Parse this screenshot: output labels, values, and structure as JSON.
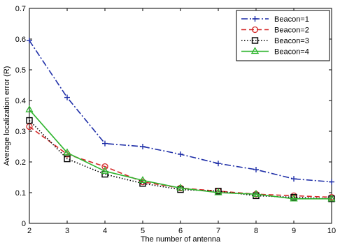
{
  "chart_data": {
    "type": "line",
    "xlabel": "The number of antenna",
    "ylabel": "Average localization error (R)",
    "x": [
      2,
      3,
      4,
      5,
      6,
      7,
      8,
      9,
      10
    ],
    "xlim": [
      2,
      10
    ],
    "ylim": [
      0,
      0.7
    ],
    "xticks": [
      "2",
      "3",
      "4",
      "5",
      "6",
      "7",
      "8",
      "9",
      "10"
    ],
    "yticks": [
      "0",
      "0.1",
      "0.2",
      "0.3",
      "0.4",
      "0.5",
      "0.6",
      "0.7"
    ],
    "grid": false,
    "legend_position": "top-right",
    "series": [
      {
        "name": "Beacon=1",
        "color": "#1f2fa8",
        "line_style": "dash-dot",
        "marker": "plus",
        "values": [
          0.595,
          0.41,
          0.26,
          0.25,
          0.225,
          0.195,
          0.175,
          0.145,
          0.135
        ]
      },
      {
        "name": "Beacon=2",
        "color": "#d42a2a",
        "line_style": "dashed",
        "marker": "circle",
        "values": [
          0.315,
          0.225,
          0.185,
          0.135,
          0.115,
          0.105,
          0.095,
          0.09,
          0.085
        ]
      },
      {
        "name": "Beacon=3",
        "color": "#000000",
        "line_style": "dotted",
        "marker": "square",
        "values": [
          0.335,
          0.21,
          0.16,
          0.13,
          0.11,
          0.105,
          0.09,
          0.085,
          0.08
        ]
      },
      {
        "name": "Beacon=4",
        "color": "#2fb52f",
        "line_style": "solid",
        "marker": "triangle",
        "values": [
          0.37,
          0.23,
          0.17,
          0.14,
          0.115,
          0.1,
          0.095,
          0.08,
          0.08
        ]
      }
    ]
  }
}
